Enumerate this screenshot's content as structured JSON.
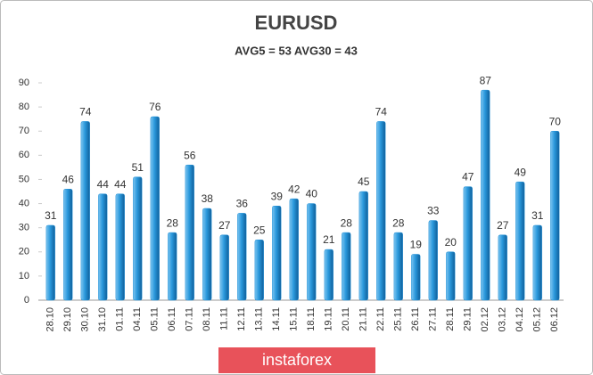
{
  "chart_data": {
    "type": "bar",
    "title": "EURUSD",
    "subtitle": "AVG5 = 53 AVG30 = 43",
    "categories": [
      "28.10",
      "29.10",
      "30.10",
      "31.10",
      "01.11",
      "04.11",
      "05.11",
      "06.11",
      "07.11",
      "08.11",
      "11.11",
      "12.11",
      "13.11",
      "14.11",
      "15.11",
      "18.11",
      "19.11",
      "20.11",
      "21.11",
      "22.11",
      "25.11",
      "26.11",
      "27.11",
      "28.11",
      "29.11",
      "02.12",
      "03.12",
      "04.12",
      "05.12",
      "06.12"
    ],
    "values": [
      31,
      46,
      74,
      44,
      44,
      51,
      76,
      28,
      56,
      38,
      27,
      36,
      25,
      39,
      42,
      40,
      21,
      28,
      45,
      74,
      28,
      19,
      33,
      20,
      47,
      87,
      27,
      49,
      31,
      70
    ],
    "color": "#1f8fd6",
    "ylim": [
      0,
      90
    ],
    "yticks": [
      0,
      10,
      20,
      30,
      40,
      50,
      60,
      70,
      80,
      90
    ],
    "grid": false,
    "watermark": "instaforex"
  }
}
